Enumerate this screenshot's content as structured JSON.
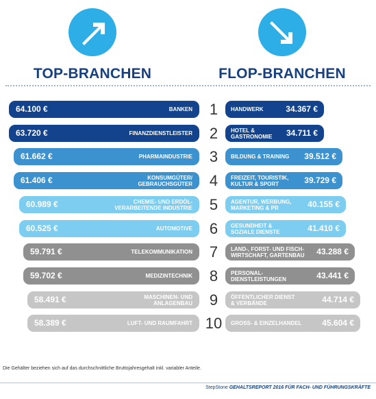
{
  "header": {
    "top_title": "TOP-BRANCHEN",
    "flop_title": "FLOP-BRANCHEN"
  },
  "colors": {
    "dark_blue": "#12438c",
    "mid_blue": "#3c92cf",
    "light_blue": "#7dcdf0",
    "dark_gray": "#909090",
    "light_gray": "#c6c6c6",
    "arrow_circle": "#2eaee6",
    "title": "#16407f"
  },
  "chart_data": {
    "type": "bar",
    "title_top": "TOP-BRANCHEN",
    "title_flop": "FLOP-BRANCHEN",
    "ranks": [
      "1",
      "2",
      "3",
      "4",
      "5",
      "6",
      "7",
      "8",
      "9",
      "10"
    ],
    "top": [
      {
        "rank": "1",
        "label": "BANKEN",
        "value": "64.100 €",
        "amount": 64100,
        "color": "dark_blue"
      },
      {
        "rank": "2",
        "label": "FINANZDIENSTLEISTER",
        "value": "63.720 €",
        "amount": 63720,
        "color": "dark_blue"
      },
      {
        "rank": "3",
        "label": "PHARMAINDUSTRIE",
        "value": "61.662 €",
        "amount": 61662,
        "color": "mid_blue"
      },
      {
        "rank": "4",
        "label": "KONSUMGÜTER/\nGEBRAUCHSGÜTER",
        "value": "61.406 €",
        "amount": 61406,
        "color": "mid_blue"
      },
      {
        "rank": "5",
        "label": "CHEMIE- UND ERDÖL-\nVERARBEITENDE INDUSTRIE",
        "value": "60.989 €",
        "amount": 60989,
        "color": "light_blue"
      },
      {
        "rank": "6",
        "label": "AUTOMOTIVE",
        "value": "60.525 €",
        "amount": 60525,
        "color": "light_blue"
      },
      {
        "rank": "7",
        "label": "TELEKOMMUNIKATION",
        "value": "59.791 €",
        "amount": 59791,
        "color": "dark_gray"
      },
      {
        "rank": "8",
        "label": "MEDIZINTECHNIK",
        "value": "59.702 €",
        "amount": 59702,
        "color": "dark_gray"
      },
      {
        "rank": "9",
        "label": "MASCHINEN- UND\nANLAGENBAU",
        "value": "58.491 €",
        "amount": 58491,
        "color": "light_gray"
      },
      {
        "rank": "10",
        "label": "LUFT- UND RAUMFAHRT",
        "value": "58.389 €",
        "amount": 58389,
        "color": "light_gray"
      }
    ],
    "flop": [
      {
        "rank": "1",
        "label": "HANDWERK",
        "value": "34.367 €",
        "amount": 34367,
        "color": "dark_blue"
      },
      {
        "rank": "2",
        "label": "HOTEL &\nGASTRONOMIE",
        "value": "34.711 €",
        "amount": 34711,
        "color": "dark_blue"
      },
      {
        "rank": "3",
        "label": "BILDUNG & TRAINING",
        "value": "39.512 €",
        "amount": 39512,
        "color": "mid_blue"
      },
      {
        "rank": "4",
        "label": "FREIZEIT, TOURISTIK,\nKULTUR & SPORT",
        "value": "39.729 €",
        "amount": 39729,
        "color": "mid_blue"
      },
      {
        "rank": "5",
        "label": "AGENTUR, WERBUNG,\nMARKETING & PR",
        "value": "40.155 €",
        "amount": 40155,
        "color": "light_blue"
      },
      {
        "rank": "6",
        "label": "GESUNDHEIT &\nSOZIALE DIENSTE",
        "value": "41.410 €",
        "amount": 41410,
        "color": "light_blue"
      },
      {
        "rank": "7",
        "label": "LAND-, FORST- UND FISCH-\nWIRTSCHAFT, GARTENBAU",
        "value": "43.288 €",
        "amount": 43288,
        "color": "dark_gray"
      },
      {
        "rank": "8",
        "label": "PERSONAL-\nDIENSTLEISTUNGEN",
        "value": "43.441 €",
        "amount": 43441,
        "color": "dark_gray"
      },
      {
        "rank": "9",
        "label": "ÖFFENTLICHER DIENST\n& VERBÄNDE",
        "value": "44.714 €",
        "amount": 44714,
        "color": "light_gray"
      },
      {
        "rank": "10",
        "label": "GROSS- & EINZELHANDEL",
        "value": "45.604 €",
        "amount": 45604,
        "color": "light_gray"
      }
    ]
  },
  "icons": {
    "top": "arrow-up-right-icon",
    "flop": "arrow-down-right-icon"
  },
  "footnote": "Die Gehälter beziehen sich auf das durchschnittliche Bruttojahresgehalt inkl. variabler Anteile.",
  "footer": {
    "brand": "StepStone",
    "report": "GEHALTSREPORT 2016 FÜR FACH- UND FÜHRUNGSKRÄFTE"
  }
}
